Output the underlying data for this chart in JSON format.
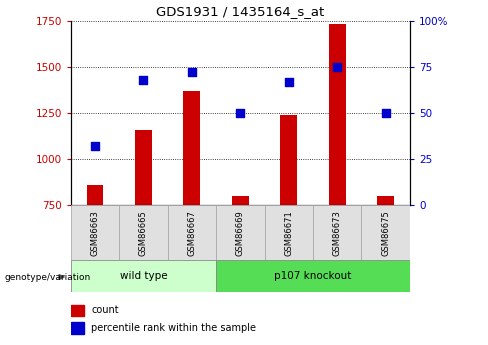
{
  "title": "GDS1931 / 1435164_s_at",
  "samples": [
    "GSM86663",
    "GSM86665",
    "GSM86667",
    "GSM86669",
    "GSM86671",
    "GSM86673",
    "GSM86675"
  ],
  "counts": [
    860,
    1160,
    1370,
    800,
    1240,
    1730,
    800
  ],
  "percentiles": [
    32,
    68,
    72,
    50,
    67,
    75,
    50
  ],
  "ylim_left": [
    750,
    1750
  ],
  "ylim_right": [
    0,
    100
  ],
  "yticks_left": [
    750,
    1000,
    1250,
    1500,
    1750
  ],
  "yticks_right": [
    0,
    25,
    50,
    75,
    100
  ],
  "groups": [
    {
      "label": "wild type",
      "start": 0,
      "end": 2,
      "color": "#ccffcc"
    },
    {
      "label": "p107 knockout",
      "start": 3,
      "end": 6,
      "color": "#55dd55"
    }
  ],
  "bar_color": "#cc0000",
  "dot_color": "#0000cc",
  "bar_width": 0.35,
  "bg_color": "#e0e0e0",
  "legend_count_color": "#cc0000",
  "legend_pct_color": "#0000cc",
  "geno_label": "genotype/variation"
}
